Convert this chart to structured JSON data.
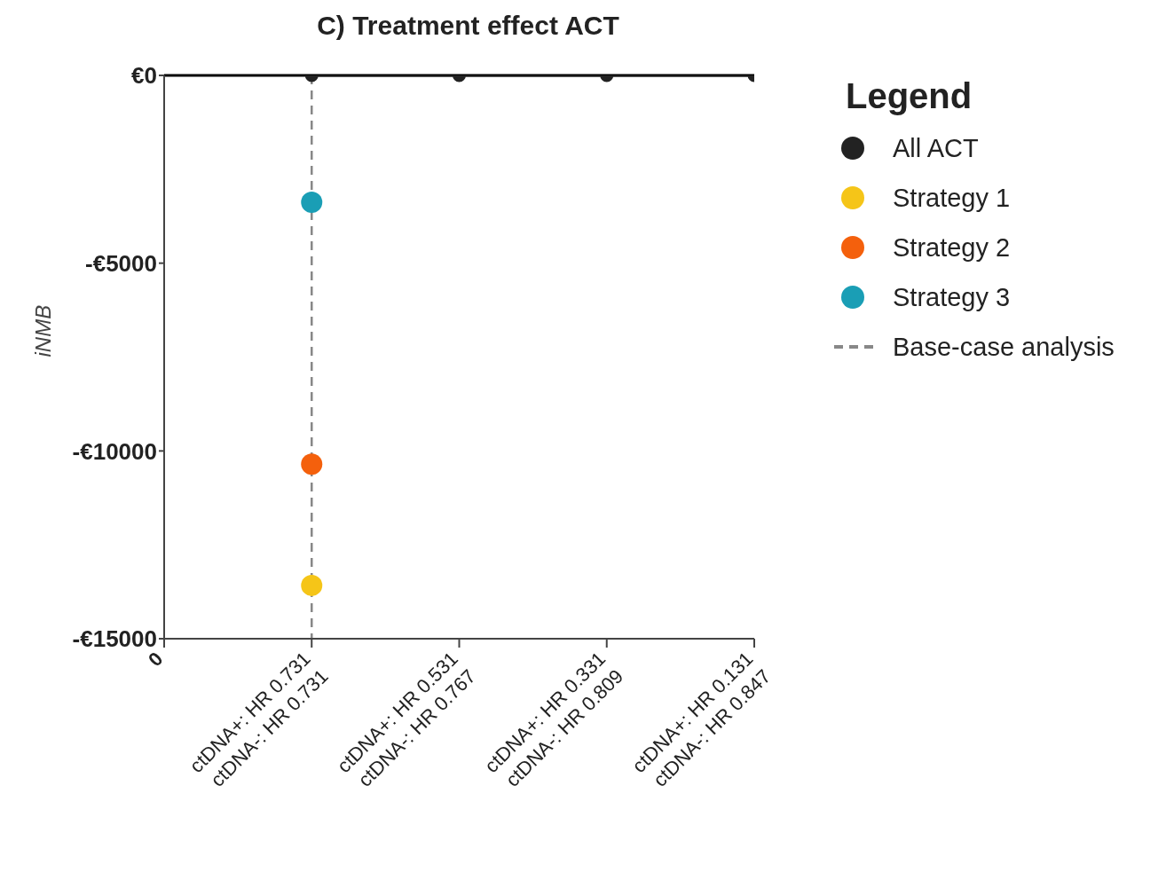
{
  "chart_data": {
    "type": "scatter",
    "title": "C) Treatment effect ACT",
    "ylabel": "iNMB",
    "legend_title": "Legend",
    "legend": "top right",
    "categories": [
      "0",
      "ctDNA+: HR 0.731\nctDNA-: HR 0.731",
      "ctDNA+: HR 0.531\nctDNA-: HR 0.767",
      "ctDNA+: HR 0.331\nctDNA-: HR 0.809",
      "ctDNA+: HR 0.131\nctDNA-: HR 0.847"
    ],
    "ylim": [
      -15000,
      0
    ],
    "yticks": [
      {
        "value": 0,
        "label": "€0"
      },
      {
        "value": -5000,
        "label": "-€5000"
      },
      {
        "value": -10000,
        "label": "-€10000"
      },
      {
        "value": -15000,
        "label": "-€15000"
      }
    ],
    "marker": "circle",
    "grid": false,
    "series": [
      {
        "name": "All ACT",
        "type": "line",
        "color": "#222222",
        "values": [
          null,
          0,
          0,
          0,
          0
        ]
      },
      {
        "name": "Strategy 1",
        "color": "#f5c518",
        "values": [
          null,
          -13580,
          null,
          null,
          null
        ]
      },
      {
        "name": "Strategy 2",
        "color": "#f4600c",
        "values": [
          null,
          -10350,
          null,
          null,
          null
        ]
      },
      {
        "name": "Strategy 3",
        "color": "#1a9eb5",
        "values": [
          null,
          -3380,
          null,
          null,
          null
        ]
      },
      {
        "name": "Base-case analysis",
        "type": "line",
        "color": "#888888",
        "line_style": "dashed",
        "marker": "none",
        "x": [
          "ctDNA+: HR 0.731\nctDNA-: HR 0.731",
          "ctDNA+: HR 0.731\nctDNA-: HR 0.731"
        ],
        "values": [
          0,
          -15000
        ]
      }
    ],
    "ref_lines": [
      {
        "axis": "y",
        "value": 0,
        "color": "#000000",
        "line_style": "solid"
      }
    ]
  }
}
